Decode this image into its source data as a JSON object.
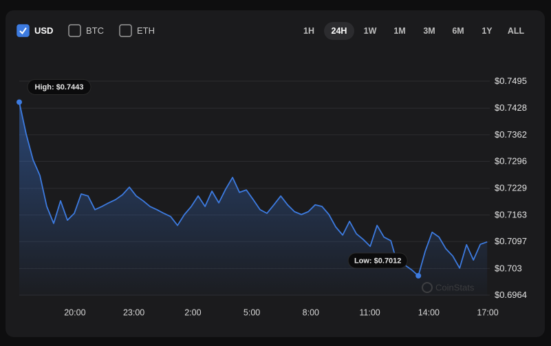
{
  "controls": {
    "currencies": [
      {
        "label": "USD",
        "checked": true
      },
      {
        "label": "BTC",
        "checked": false
      },
      {
        "label": "ETH",
        "checked": false
      }
    ],
    "ranges": [
      "1H",
      "24H",
      "1W",
      "1M",
      "3M",
      "6M",
      "1Y",
      "ALL"
    ],
    "selected_range": "24H"
  },
  "chart_data": {
    "type": "area",
    "color": "#3d7be0",
    "x": [
      17.17,
      17.52,
      17.87,
      18.22,
      18.57,
      18.92,
      19.27,
      19.62,
      19.97,
      20.32,
      20.67,
      21.02,
      21.37,
      21.72,
      22.07,
      22.42,
      22.77,
      23.12,
      23.47,
      23.82,
      24.17,
      24.52,
      24.87,
      25.22,
      25.57,
      25.92,
      26.27,
      26.62,
      26.97,
      27.32,
      27.67,
      28.02,
      28.37,
      28.72,
      29.07,
      29.42,
      29.77,
      30.12,
      30.47,
      30.82,
      31.17,
      31.52,
      31.87,
      32.22,
      32.57,
      32.92,
      33.27,
      33.62,
      33.97,
      34.32,
      34.67,
      35.02,
      35.37,
      35.72,
      36.07,
      36.42,
      36.77,
      37.12,
      37.47,
      37.82,
      38.17,
      38.52,
      38.87,
      39.22,
      39.57,
      39.92,
      40.27,
      40.62,
      40.97
    ],
    "values": [
      0.7443,
      0.7364,
      0.73,
      0.7261,
      0.7184,
      0.7142,
      0.7198,
      0.715,
      0.7167,
      0.7215,
      0.721,
      0.7176,
      0.7184,
      0.7193,
      0.7201,
      0.7213,
      0.7232,
      0.721,
      0.7198,
      0.7184,
      0.7176,
      0.7167,
      0.7159,
      0.7137,
      0.7164,
      0.7184,
      0.721,
      0.7184,
      0.7222,
      0.7193,
      0.7227,
      0.7256,
      0.7219,
      0.7225,
      0.7201,
      0.7176,
      0.7167,
      0.7188,
      0.721,
      0.7188,
      0.7171,
      0.7164,
      0.7171,
      0.7188,
      0.7184,
      0.7164,
      0.7133,
      0.7113,
      0.7147,
      0.7116,
      0.7102,
      0.7085,
      0.7137,
      0.7108,
      0.7099,
      0.7039,
      0.7039,
      0.7027,
      0.7012,
      0.7073,
      0.712,
      0.7108,
      0.7079,
      0.7061,
      0.7031,
      0.7089,
      0.7051,
      0.709,
      0.7096
    ],
    "xlim": [
      17.17,
      41.05
    ],
    "xticks": [
      {
        "value": 20,
        "label": "20:00"
      },
      {
        "value": 23,
        "label": "23:00"
      },
      {
        "value": 26,
        "label": "2:00"
      },
      {
        "value": 29,
        "label": "5:00"
      },
      {
        "value": 32,
        "label": "8:00"
      },
      {
        "value": 35,
        "label": "11:00"
      },
      {
        "value": 38,
        "label": "14:00"
      },
      {
        "value": 41,
        "label": "17:00"
      }
    ],
    "ylim": [
      0.6964,
      0.7495
    ],
    "yticks": [
      {
        "value": 0.6964,
        "label": "$0.6964"
      },
      {
        "value": 0.703,
        "label": "$0.703"
      },
      {
        "value": 0.7097,
        "label": "$0.7097"
      },
      {
        "value": 0.7163,
        "label": "$0.7163"
      },
      {
        "value": 0.7229,
        "label": "$0.7229"
      },
      {
        "value": 0.7296,
        "label": "$0.7296"
      },
      {
        "value": 0.7362,
        "label": "$0.7362"
      },
      {
        "value": 0.7428,
        "label": "$0.7428"
      },
      {
        "value": 0.7495,
        "label": "$0.7495"
      }
    ],
    "grid": true,
    "annotations": {
      "high": "High: $0.7443",
      "low": "Low: $0.7012"
    },
    "watermark": "CoinStats"
  }
}
